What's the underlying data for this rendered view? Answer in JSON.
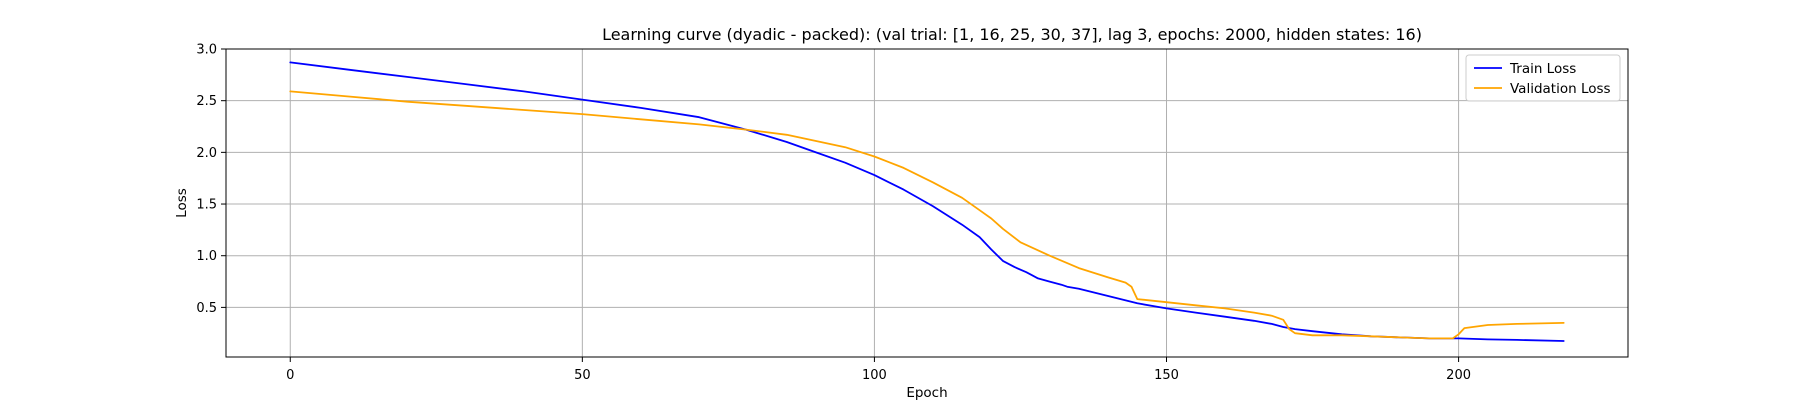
{
  "chart_data": {
    "type": "line",
    "title": "Learning curve (dyadic - packed): (val trial: [1, 16, 25, 30, 37], lag 3, epochs: 2000, hidden states: 16)",
    "xlabel": "Epoch",
    "ylabel": "Loss",
    "xlim": [
      -11,
      229
    ],
    "ylim": [
      0.02,
      3.0
    ],
    "xticks": [
      0,
      50,
      100,
      150,
      200
    ],
    "yticks": [
      0.5,
      1.0,
      1.5,
      2.0,
      2.5,
      3.0
    ],
    "xtick_labels": [
      "0",
      "50",
      "100",
      "150",
      "200"
    ],
    "ytick_labels": [
      "0.5",
      "1.0",
      "1.5",
      "2.0",
      "2.5",
      "3.0"
    ],
    "grid": true,
    "legend_position": "top-right",
    "series": [
      {
        "name": "Train Loss",
        "color": "#0000ff",
        "x": [
          0,
          10,
          20,
          30,
          40,
          50,
          60,
          70,
          78,
          85,
          90,
          95,
          100,
          105,
          110,
          115,
          118,
          120,
          122,
          124,
          126,
          127,
          128,
          130,
          132,
          133,
          135,
          140,
          145,
          150,
          155,
          160,
          165,
          168,
          170,
          172,
          175,
          180,
          185,
          190,
          195,
          200,
          205,
          210,
          218
        ],
        "y": [
          2.87,
          2.8,
          2.73,
          2.66,
          2.59,
          2.51,
          2.43,
          2.34,
          2.22,
          2.1,
          2.0,
          1.9,
          1.78,
          1.64,
          1.48,
          1.3,
          1.18,
          1.06,
          0.95,
          0.89,
          0.84,
          0.81,
          0.78,
          0.75,
          0.72,
          0.7,
          0.68,
          0.61,
          0.54,
          0.49,
          0.45,
          0.41,
          0.37,
          0.34,
          0.31,
          0.29,
          0.27,
          0.24,
          0.22,
          0.21,
          0.2,
          0.2,
          0.19,
          0.185,
          0.175
        ]
      },
      {
        "name": "Validation Loss",
        "color": "#ffa500",
        "x": [
          0,
          10,
          20,
          30,
          40,
          50,
          60,
          70,
          78,
          85,
          90,
          95,
          100,
          105,
          110,
          115,
          118,
          120,
          122,
          125,
          130,
          135,
          140,
          143,
          144,
          145,
          150,
          155,
          160,
          165,
          168,
          170,
          171,
          172,
          175,
          180,
          185,
          190,
          195,
          199,
          200,
          201,
          205,
          210,
          218
        ],
        "y": [
          2.59,
          2.54,
          2.49,
          2.45,
          2.41,
          2.37,
          2.32,
          2.27,
          2.22,
          2.17,
          2.11,
          2.05,
          1.96,
          1.85,
          1.71,
          1.56,
          1.44,
          1.36,
          1.26,
          1.13,
          1.0,
          0.88,
          0.79,
          0.74,
          0.7,
          0.58,
          0.55,
          0.52,
          0.49,
          0.45,
          0.42,
          0.38,
          0.29,
          0.25,
          0.23,
          0.23,
          0.22,
          0.21,
          0.2,
          0.2,
          0.24,
          0.3,
          0.33,
          0.34,
          0.35
        ]
      }
    ]
  }
}
